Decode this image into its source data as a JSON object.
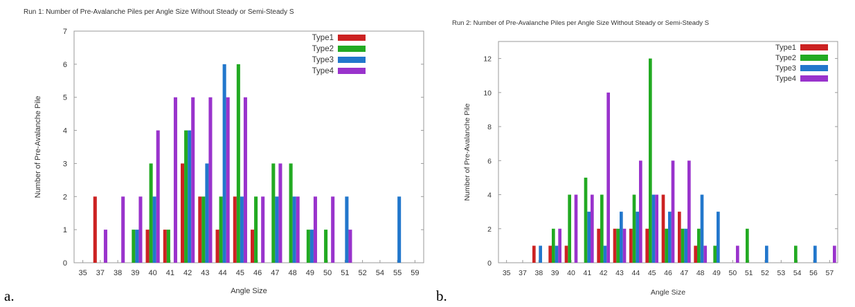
{
  "panel_letters": [
    "a.",
    "b."
  ],
  "chart_data": [
    {
      "type": "bar",
      "title": "Run 1: Number of Pre-Avalanche Piles per Angle Size Without Steady or Semi-Steady S",
      "xlabel": "Angle Size",
      "ylabel": "Number of Pre-Avalanche Pile",
      "ylim": [
        0,
        7
      ],
      "yticks": [
        0,
        1,
        2,
        3,
        4,
        5,
        6,
        7
      ],
      "grid": false,
      "legend_position": "top-right",
      "categories": [
        "35",
        "37",
        "38",
        "39",
        "40",
        "41",
        "42",
        "43",
        "44",
        "45",
        "46",
        "47",
        "48",
        "49",
        "50",
        "51",
        "52",
        "54",
        "55",
        "59"
      ],
      "series": [
        {
          "name": "Type1",
          "color": "#cc2222",
          "values": [
            0,
            2,
            0,
            0,
            1,
            1,
            3,
            2,
            1,
            2,
            1,
            0,
            0,
            0,
            0,
            0,
            0,
            0,
            0,
            0
          ]
        },
        {
          "name": "Type2",
          "color": "#22aa22",
          "values": [
            0,
            0,
            0,
            1,
            3,
            1,
            4,
            2,
            2,
            6,
            2,
            3,
            3,
            1,
            1,
            0,
            0,
            0,
            0,
            0
          ]
        },
        {
          "name": "Type3",
          "color": "#2277cc",
          "values": [
            0,
            0,
            0,
            1,
            2,
            0,
            4,
            3,
            6,
            2,
            0,
            2,
            2,
            1,
            0,
            2,
            0,
            0,
            2,
            0
          ]
        },
        {
          "name": "Type4",
          "color": "#9933cc",
          "values": [
            0,
            1,
            2,
            2,
            4,
            5,
            5,
            5,
            5,
            5,
            2,
            3,
            2,
            2,
            2,
            1,
            0,
            0,
            0,
            0
          ]
        }
      ]
    },
    {
      "type": "bar",
      "title": "Run 2: Number of Pre-Avalanche Piles per Angle Size Without Steady or Semi-Steady S",
      "xlabel": "Angle Size",
      "ylabel": "Number of Pre-Avalanche Pile",
      "ylim": [
        0,
        13
      ],
      "yticks": [
        0,
        2,
        4,
        6,
        8,
        10,
        12
      ],
      "grid": false,
      "legend_position": "top-right",
      "categories": [
        "35",
        "37",
        "38",
        "39",
        "40",
        "41",
        "42",
        "43",
        "44",
        "45",
        "46",
        "47",
        "48",
        "49",
        "50",
        "51",
        "52",
        "53",
        "54",
        "56",
        "57"
      ],
      "series": [
        {
          "name": "Type1",
          "color": "#cc2222",
          "values": [
            0,
            0,
            1,
            1,
            1,
            0,
            2,
            2,
            2,
            2,
            4,
            3,
            1,
            0,
            0,
            0,
            0,
            0,
            0,
            0,
            0
          ]
        },
        {
          "name": "Type2",
          "color": "#22aa22",
          "values": [
            0,
            0,
            0,
            2,
            4,
            5,
            4,
            2,
            4,
            12,
            2,
            2,
            2,
            1,
            0,
            2,
            0,
            0,
            1,
            0,
            0
          ]
        },
        {
          "name": "Type3",
          "color": "#2277cc",
          "values": [
            0,
            0,
            1,
            1,
            0,
            3,
            1,
            3,
            3,
            4,
            3,
            2,
            4,
            3,
            0,
            0,
            1,
            0,
            0,
            1,
            0
          ]
        },
        {
          "name": "Type4",
          "color": "#9933cc",
          "values": [
            0,
            0,
            0,
            2,
            4,
            4,
            10,
            2,
            6,
            4,
            6,
            6,
            1,
            0,
            1,
            0,
            0,
            0,
            0,
            0,
            1
          ]
        }
      ]
    }
  ]
}
